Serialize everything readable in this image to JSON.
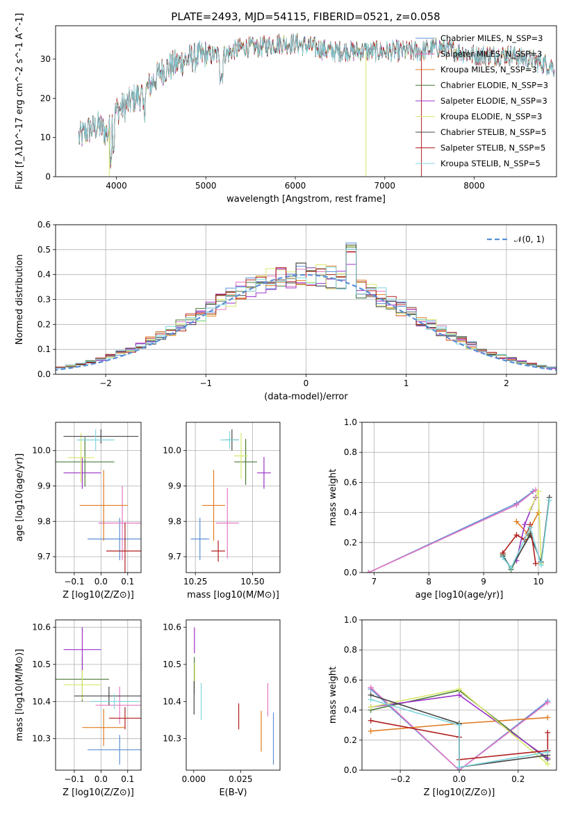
{
  "figure_title": "PLATE=2493, MJD=54115, FIBERID=0521, z=0.058",
  "colors": {
    "Chabrier MILES": "#5b8fd6",
    "Salpeter MILES": "#e377c2",
    "Kroupa MILES": "#e07b20",
    "Chabrier ELODIE": "#4a7a3a",
    "Salpeter ELODIE": "#9b30c8",
    "Kroupa ELODIE": "#d7e86a",
    "Chabrier STELIB": "#444444",
    "Salpeter STELIB": "#b01c1c",
    "Kroupa STELIB": "#7fd6df"
  },
  "chart_data": [
    {
      "id": "spectrum",
      "type": "line",
      "title": "PLATE=2493, MJD=54115, FIBERID=0521, z=0.058",
      "xlabel": "wavelength [Angstrom, rest frame]",
      "ylabel": "Flux [f_λ10^-17 erg cm^-2 s^-1 A^-1]",
      "xlim": [
        3320,
        8920
      ],
      "ylim": [
        0,
        38.5
      ],
      "xticks": [
        4000,
        5000,
        6000,
        7000,
        8000
      ],
      "yticks": [
        0,
        10,
        20,
        30
      ],
      "grid": false,
      "legend_position": "top-right",
      "legend": [
        {
          "label": "Chabrier MILES, N_SSP=3",
          "model": "Chabrier MILES"
        },
        {
          "label": "Salpeter MILES, N_SSP=3",
          "model": "Salpeter MILES"
        },
        {
          "label": "Kroupa MILES, N_SSP=3",
          "model": "Kroupa MILES"
        },
        {
          "label": "Chabrier ELODIE, N_SSP=3",
          "model": "Chabrier ELODIE"
        },
        {
          "label": "Salpeter ELODIE, N_SSP=3",
          "model": "Salpeter ELODIE"
        },
        {
          "label": "Kroupa ELODIE, N_SSP=3",
          "model": "Kroupa ELODIE"
        },
        {
          "label": "Chabrier STELIB, N_SSP=5",
          "model": "Chabrier STELIB"
        },
        {
          "label": "Salpeter STELIB, N_SSP=5",
          "model": "Salpeter STELIB"
        },
        {
          "label": "Kroupa STELIB, N_SSP=5",
          "model": "Kroupa STELIB"
        }
      ],
      "continuum": {
        "x": [
          3580,
          3700,
          3800,
          3900,
          4000,
          4100,
          4200,
          4300,
          4400,
          4500,
          4600,
          4800,
          5000,
          5200,
          5400,
          5600,
          5800,
          6000,
          6200,
          6400,
          6600,
          6800,
          7000,
          7200,
          7400,
          7600,
          7800,
          8000,
          8200,
          8400,
          8600,
          8900
        ],
        "y": [
          10,
          12,
          13,
          11,
          17,
          18,
          20,
          21,
          24,
          27,
          28,
          30,
          31,
          31,
          33,
          33,
          34,
          34,
          33,
          32,
          32,
          32,
          32,
          32,
          32,
          33,
          32,
          31,
          31,
          31,
          30,
          28
        ]
      },
      "spikes": [
        {
          "model": "Kroupa ELODIE",
          "x": 3920,
          "y": 0
        },
        {
          "model": "Kroupa ELODIE",
          "x": 6790,
          "y": 0
        },
        {
          "model": "Salpeter STELIB",
          "x": 7410,
          "y": 0
        }
      ]
    },
    {
      "id": "residuals",
      "type": "step",
      "xlabel": "(data-model)/error",
      "ylabel": "Normed distribution",
      "xlim": [
        -2.5,
        2.5
      ],
      "ylim": [
        0,
        0.6
      ],
      "xticks": [
        -2,
        -1,
        0,
        1,
        2
      ],
      "yticks": [
        0.0,
        0.1,
        0.2,
        0.3,
        0.4,
        0.5,
        0.6
      ],
      "grid": true,
      "legend_position": "top-right",
      "reference": {
        "label": "𝒩(0, 1)",
        "mean": 0,
        "sigma": 1,
        "color": "#5b8fd6"
      },
      "bin_width": 0.1
    },
    {
      "id": "age_vs_Z",
      "type": "errorbar",
      "xlabel": "Z [log10(Z/Z⊙)]",
      "ylabel": "age  [log10(age/yr)]",
      "xlim": [
        -0.17,
        0.15
      ],
      "ylim": [
        9.655,
        10.08
      ],
      "xticks": [
        -0.1,
        0.0,
        0.1
      ],
      "yticks": [
        9.7,
        9.8,
        9.9,
        10.0
      ],
      "grid": true,
      "points": [
        {
          "model": "Chabrier MILES",
          "x": 0.07,
          "y": 9.75,
          "xerr": 0.12,
          "yerr": 0.06
        },
        {
          "model": "Salpeter MILES",
          "x": 0.08,
          "y": 9.795,
          "xerr": 0.09,
          "yerr": 0.105
        },
        {
          "model": "Kroupa MILES",
          "x": 0.01,
          "y": 9.845,
          "xerr": 0.09,
          "yerr": 0.1
        },
        {
          "model": "Chabrier ELODIE",
          "x": -0.06,
          "y": 9.968,
          "xerr": 0.11,
          "yerr": 0.07
        },
        {
          "model": "Salpeter ELODIE",
          "x": -0.07,
          "y": 9.937,
          "xerr": 0.07,
          "yerr": 0.045
        },
        {
          "model": "Kroupa ELODIE",
          "x": -0.075,
          "y": 9.98,
          "xerr": 0.05,
          "yerr": 0.07
        },
        {
          "model": "Chabrier STELIB",
          "x": 0.0,
          "y": 10.04,
          "xerr": 0.14,
          "yerr": 0.02
        },
        {
          "model": "Salpeter STELIB",
          "x": 0.09,
          "y": 9.716,
          "xerr": 0.07,
          "yerr": 0.08
        },
        {
          "model": "Kroupa STELIB",
          "x": -0.02,
          "y": 10.03,
          "xerr": 0.07,
          "yerr": 0.03
        }
      ]
    },
    {
      "id": "age_vs_mass",
      "type": "errorbar",
      "xlabel": "mass [log10(M/M⊙)]",
      "ylabel": "",
      "xlim": [
        10.21,
        10.62
      ],
      "ylim": [
        9.655,
        10.08
      ],
      "xticks": [
        10.25,
        10.5
      ],
      "xticklabels": [
        "10.25",
        "10.50"
      ],
      "yticks": [
        9.7,
        9.8,
        9.9,
        10.0
      ],
      "grid": true,
      "points": [
        {
          "model": "Chabrier MILES",
          "x": 10.27,
          "y": 9.75,
          "xerr": 0.04,
          "yerr": 0.06
        },
        {
          "model": "Salpeter MILES",
          "x": 10.39,
          "y": 9.795,
          "xerr": 0.05,
          "yerr": 0.1
        },
        {
          "model": "Kroupa MILES",
          "x": 10.33,
          "y": 9.845,
          "xerr": 0.05,
          "yerr": 0.1
        },
        {
          "model": "Chabrier ELODIE",
          "x": 10.47,
          "y": 9.968,
          "xerr": 0.05,
          "yerr": 0.065
        },
        {
          "model": "Salpeter ELODIE",
          "x": 10.55,
          "y": 9.937,
          "xerr": 0.03,
          "yerr": 0.045
        },
        {
          "model": "Kroupa ELODIE",
          "x": 10.45,
          "y": 9.985,
          "xerr": 0.03,
          "yerr": 0.065
        },
        {
          "model": "Chabrier STELIB",
          "x": 10.41,
          "y": 10.03,
          "xerr": 0.03,
          "yerr": 0.03
        },
        {
          "model": "Salpeter STELIB",
          "x": 10.35,
          "y": 9.716,
          "xerr": 0.03,
          "yerr": 0.03
        },
        {
          "model": "Kroupa STELIB",
          "x": 10.4,
          "y": 10.03,
          "xerr": 0.04,
          "yerr": 0.025
        }
      ]
    },
    {
      "id": "weight_vs_age",
      "type": "line",
      "xlabel": "age  [log10(age/yr)]",
      "ylabel": "mass weight",
      "xlim": [
        6.78,
        10.33
      ],
      "ylim": [
        0,
        1.0
      ],
      "xticks": [
        7,
        8,
        9,
        10
      ],
      "yticks": [
        0.0,
        0.2,
        0.4,
        0.6,
        0.8,
        1.0
      ],
      "grid": true,
      "series": [
        {
          "model": "Chabrier MILES",
          "x": [
            6.9,
            9.6,
            9.9
          ],
          "y": [
            0.0,
            0.46,
            0.54
          ]
        },
        {
          "model": "Salpeter MILES",
          "x": [
            6.9,
            9.6,
            9.95
          ],
          "y": [
            0.0,
            0.45,
            0.55
          ]
        },
        {
          "model": "Kroupa MILES",
          "x": [
            9.6,
            9.8,
            10.0
          ],
          "y": [
            0.34,
            0.26,
            0.4
          ]
        },
        {
          "model": "Chabrier ELODIE",
          "x": [
            9.35,
            9.5,
            9.85
          ],
          "y": [
            0.12,
            0.02,
            0.26
          ]
        },
        {
          "model": "Salpeter ELODIE",
          "x": [
            9.6,
            9.75,
            9.95
          ],
          "y": [
            0.08,
            0.32,
            0.5
          ]
        },
        {
          "model": "Kroupa ELODIE",
          "x": [
            9.85,
            10.0,
            10.05
          ],
          "y": [
            0.42,
            0.54,
            0.06
          ]
        },
        {
          "model": "Chabrier STELIB",
          "x": [
            9.35,
            9.5,
            9.85,
            10.05,
            10.2
          ],
          "y": [
            0.11,
            0.03,
            0.25,
            0.07,
            0.5
          ]
        },
        {
          "model": "Salpeter STELIB",
          "x": [
            9.35,
            9.6,
            9.75,
            9.85,
            9.95
          ],
          "y": [
            0.13,
            0.25,
            0.22,
            0.32,
            0.06
          ]
        },
        {
          "model": "Kroupa STELIB",
          "x": [
            9.35,
            9.5,
            9.85,
            10.05,
            10.2
          ],
          "y": [
            0.1,
            0.03,
            0.3,
            0.05,
            0.48
          ]
        }
      ]
    },
    {
      "id": "mass_vs_Z",
      "type": "errorbar",
      "xlabel": "Z [log10(Z/Z⊙)]",
      "ylabel": "mass [log10(M/M⊙)]",
      "xlim": [
        -0.17,
        0.15
      ],
      "ylim": [
        10.215,
        10.62
      ],
      "xticks": [
        -0.1,
        0.0,
        0.1
      ],
      "yticks": [
        10.3,
        10.4,
        10.5,
        10.6
      ],
      "grid": true,
      "points": [
        {
          "model": "Chabrier MILES",
          "x": 0.07,
          "y": 10.27,
          "xerr": 0.12,
          "yerr": 0.04
        },
        {
          "model": "Salpeter MILES",
          "x": 0.07,
          "y": 10.39,
          "xerr": 0.09,
          "yerr": 0.05
        },
        {
          "model": "Kroupa MILES",
          "x": 0.01,
          "y": 10.33,
          "xerr": 0.08,
          "yerr": 0.05
        },
        {
          "model": "Chabrier ELODIE",
          "x": -0.07,
          "y": 10.46,
          "xerr": 0.1,
          "yerr": 0.06
        },
        {
          "model": "Salpeter ELODIE",
          "x": -0.07,
          "y": 10.54,
          "xerr": 0.07,
          "yerr": 0.06
        },
        {
          "model": "Kroupa ELODIE",
          "x": -0.07,
          "y": 10.445,
          "xerr": 0.07,
          "yerr": 0.04
        },
        {
          "model": "Chabrier STELIB",
          "x": 0.03,
          "y": 10.415,
          "xerr": 0.13,
          "yerr": 0.025
        },
        {
          "model": "Salpeter STELIB",
          "x": 0.09,
          "y": 10.355,
          "xerr": 0.06,
          "yerr": 0.03
        },
        {
          "model": "Kroupa STELIB",
          "x": 0.05,
          "y": 10.4,
          "xerr": 0.09,
          "yerr": 0.02
        }
      ]
    },
    {
      "id": "mass_vs_EBV",
      "type": "errorbar",
      "xlabel": "E(B-V)",
      "ylabel": "",
      "xlim": [
        -0.004,
        0.046
      ],
      "ylim": [
        10.215,
        10.62
      ],
      "xticks": [
        0.0,
        0.025
      ],
      "xticklabels": [
        "0.000",
        "0.025"
      ],
      "yticks": [
        10.3,
        10.4,
        10.5,
        10.6
      ],
      "grid": false,
      "points": [
        {
          "model": "Chabrier MILES",
          "x": 0.0425,
          "y": 10.3,
          "xerr": 0,
          "yerr": 0.07
        },
        {
          "model": "Salpeter MILES",
          "x": 0.0395,
          "y": 10.405,
          "xerr": 0,
          "yerr": 0.045
        },
        {
          "model": "Kroupa MILES",
          "x": 0.036,
          "y": 10.32,
          "xerr": 0,
          "yerr": 0.055
        },
        {
          "model": "Chabrier ELODIE",
          "x": 0.0003,
          "y": 10.47,
          "xerr": 0,
          "yerr": 0.05
        },
        {
          "model": "Salpeter ELODIE",
          "x": 0.0004,
          "y": 10.565,
          "xerr": 0,
          "yerr": 0.035
        },
        {
          "model": "Kroupa ELODIE",
          "x": 0.0005,
          "y": 10.48,
          "xerr": 0,
          "yerr": 0.025
        },
        {
          "model": "Chabrier STELIB",
          "x": 0.0002,
          "y": 10.41,
          "xerr": 0,
          "yerr": 0.045
        },
        {
          "model": "Salpeter STELIB",
          "x": 0.024,
          "y": 10.36,
          "xerr": 0,
          "yerr": 0.035
        },
        {
          "model": "Kroupa STELIB",
          "x": 0.004,
          "y": 10.4,
          "xerr": 0,
          "yerr": 0.05
        }
      ]
    },
    {
      "id": "weight_vs_Z",
      "type": "line",
      "xlabel": "Z [log10(Z/Z⊙)]",
      "ylabel": "mass weight",
      "xlim": [
        -0.33,
        0.33
      ],
      "ylim": [
        0,
        1.0
      ],
      "xticks": [
        -0.2,
        0.0,
        0.2
      ],
      "yticks": [
        0.0,
        0.2,
        0.4,
        0.6,
        0.8,
        1.0
      ],
      "grid": true,
      "series": [
        {
          "model": "Chabrier MILES",
          "x": [
            -0.3,
            0.0,
            0.3
          ],
          "y": [
            0.54,
            0.0,
            0.46
          ]
        },
        {
          "model": "Salpeter MILES",
          "x": [
            -0.3,
            0.0,
            0.3
          ],
          "y": [
            0.55,
            0.0,
            0.45
          ]
        },
        {
          "model": "Kroupa MILES",
          "x": [
            -0.3,
            0.0,
            0.3
          ],
          "y": [
            0.26,
            0.31,
            0.35
          ]
        },
        {
          "model": "Chabrier ELODIE",
          "x": [
            -0.3,
            0.0,
            0.3
          ],
          "y": [
            0.4,
            0.53,
            0.07
          ]
        },
        {
          "model": "Salpeter ELODIE",
          "x": [
            -0.3,
            0.0,
            0.3
          ],
          "y": [
            0.42,
            0.5,
            0.08
          ]
        },
        {
          "model": "Kroupa ELODIE",
          "x": [
            -0.3,
            0.0,
            0.3
          ],
          "y": [
            0.42,
            0.54,
            0.04
          ]
        },
        {
          "model": "Chabrier STELIB",
          "x": [
            -0.3,
            0.0,
            0.0,
            0.3
          ],
          "y": [
            0.5,
            0.31,
            0.02,
            0.1
          ]
        },
        {
          "model": "Salpeter STELIB",
          "x": [
            -0.3,
            0.0,
            0.0,
            0.3,
            0.3
          ],
          "y": [
            0.33,
            0.22,
            0.07,
            0.13,
            0.25
          ]
        },
        {
          "model": "Kroupa STELIB",
          "x": [
            -0.3,
            0.0,
            0.0,
            0.3
          ],
          "y": [
            0.47,
            0.3,
            0.02,
            0.12
          ]
        }
      ]
    }
  ]
}
